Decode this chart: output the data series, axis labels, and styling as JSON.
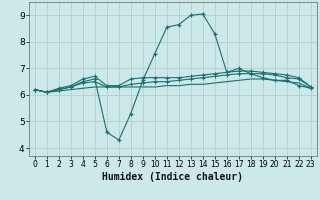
{
  "xlabel": "Humidex (Indice chaleur)",
  "x": [
    0,
    1,
    2,
    3,
    4,
    5,
    6,
    7,
    8,
    9,
    10,
    11,
    12,
    13,
    14,
    15,
    16,
    17,
    18,
    19,
    20,
    21,
    22,
    23
  ],
  "line1": [
    6.2,
    6.1,
    6.2,
    6.3,
    6.5,
    6.6,
    4.6,
    4.3,
    5.3,
    6.55,
    7.55,
    8.55,
    8.65,
    9.0,
    9.05,
    8.3,
    6.85,
    7.0,
    6.8,
    6.65,
    6.55,
    6.55,
    6.35,
    6.25
  ],
  "line2": [
    6.2,
    6.1,
    6.25,
    6.35,
    6.6,
    6.7,
    6.35,
    6.35,
    6.6,
    6.65,
    6.65,
    6.65,
    6.65,
    6.7,
    6.75,
    6.8,
    6.85,
    6.9,
    6.9,
    6.85,
    6.8,
    6.75,
    6.65,
    6.3
  ],
  "line3": [
    6.2,
    6.1,
    6.2,
    6.3,
    6.45,
    6.5,
    6.3,
    6.3,
    6.4,
    6.45,
    6.5,
    6.5,
    6.55,
    6.6,
    6.65,
    6.7,
    6.75,
    6.8,
    6.8,
    6.8,
    6.75,
    6.65,
    6.6,
    6.3
  ],
  "line4": [
    6.2,
    6.1,
    6.15,
    6.2,
    6.25,
    6.3,
    6.3,
    6.3,
    6.3,
    6.3,
    6.3,
    6.35,
    6.35,
    6.4,
    6.4,
    6.45,
    6.5,
    6.55,
    6.6,
    6.6,
    6.55,
    6.5,
    6.45,
    6.25
  ],
  "color": "#1a7070",
  "bg_color": "#cce8e8",
  "grid_color": "#aacccc",
  "ylim": [
    3.7,
    9.5
  ],
  "xlim": [
    -0.5,
    23.5
  ]
}
